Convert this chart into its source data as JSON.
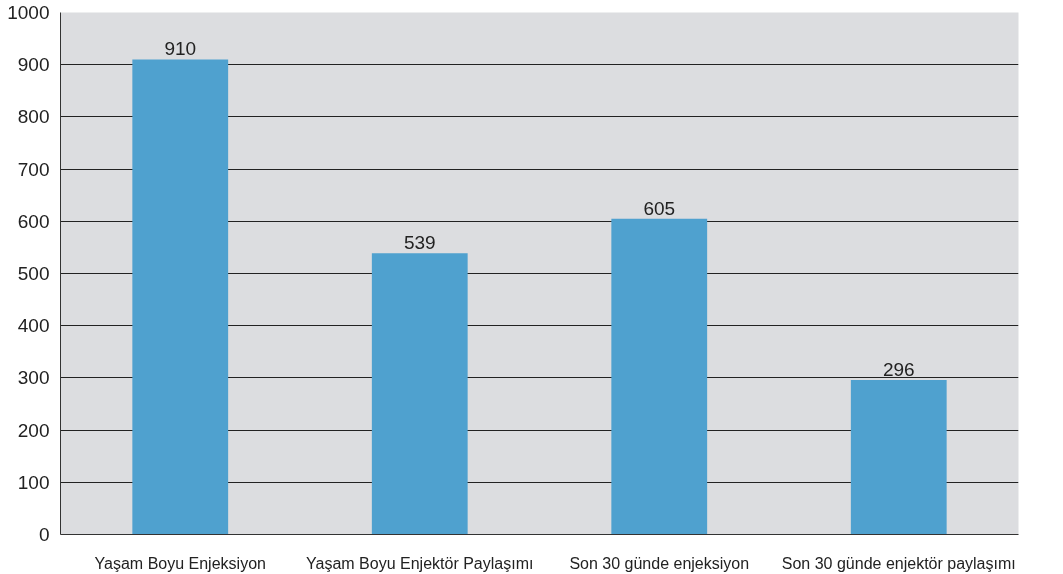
{
  "chart_data": {
    "type": "bar",
    "categories": [
      "Yaşam Boyu Enjeksiyon",
      "Yaşam Boyu Enjektör Paylaşımı",
      "Son 30 günde enjeksiyon",
      "Son 30 günde enjektör paylaşımı"
    ],
    "values": [
      910,
      539,
      605,
      296
    ],
    "color": "#4fa1cf",
    "ylim": [
      0,
      1000
    ],
    "yticks": [
      0,
      100,
      200,
      300,
      400,
      500,
      600,
      700,
      800,
      900,
      1000
    ],
    "grid": "y",
    "data_labels": true
  }
}
